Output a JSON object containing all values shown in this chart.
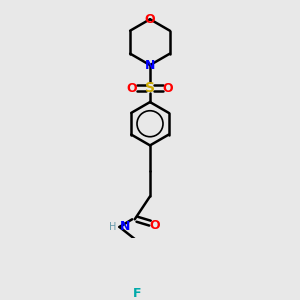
{
  "background_color": "#e8e8e8",
  "atom_colors": {
    "C": "#000000",
    "N": "#0000ff",
    "O": "#ff0000",
    "S": "#ccaa00",
    "F": "#00aaaa",
    "H": "#6699aa"
  },
  "figsize": [
    3.0,
    3.0
  ],
  "dpi": 100
}
